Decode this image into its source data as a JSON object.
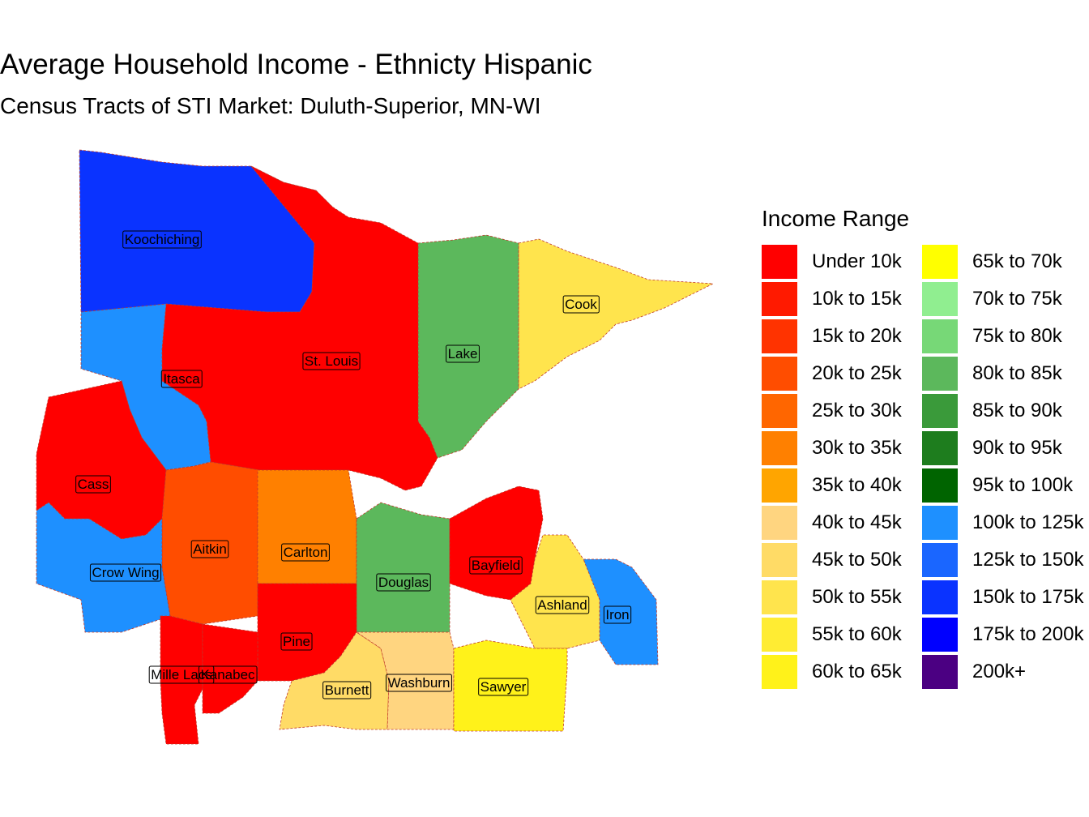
{
  "title": "Average Household Income - Ethnicty Hispanic",
  "subtitle": "Census Tracts of STI Market: Duluth-Superior, MN-WI",
  "legend": {
    "title": "Income Range",
    "items": [
      {
        "label": "Under 10k",
        "color": "#FF0000"
      },
      {
        "label": "10k to 15k",
        "color": "#FF1A00"
      },
      {
        "label": "15k to 20k",
        "color": "#FF3300"
      },
      {
        "label": "20k to 25k",
        "color": "#FF4D00"
      },
      {
        "label": "25k to 30k",
        "color": "#FF6600"
      },
      {
        "label": "30k to 35k",
        "color": "#FF8000"
      },
      {
        "label": "35k to 40k",
        "color": "#FFA500"
      },
      {
        "label": "40k to 45k",
        "color": "#FFD580"
      },
      {
        "label": "45k to 50k",
        "color": "#FFDB66"
      },
      {
        "label": "50k to 55k",
        "color": "#FFE44D"
      },
      {
        "label": "55k to 60k",
        "color": "#FFEC33"
      },
      {
        "label": "60k to 65k",
        "color": "#FFF21A"
      },
      {
        "label": "65k to 70k",
        "color": "#FFFF00"
      },
      {
        "label": "70k to 75k",
        "color": "#90EE90"
      },
      {
        "label": "75k to 80k",
        "color": "#77D877"
      },
      {
        "label": "80k to 85k",
        "color": "#5CB85C"
      },
      {
        "label": "85k to 90k",
        "color": "#3A9A3A"
      },
      {
        "label": "90k to 95k",
        "color": "#1E7D1E"
      },
      {
        "label": "95k to 100k",
        "color": "#006400"
      },
      {
        "label": "100k to 125k",
        "color": "#1E90FF"
      },
      {
        "label": "125k to 150k",
        "color": "#1A66FF"
      },
      {
        "label": "150k to 175k",
        "color": "#0A33FF"
      },
      {
        "label": "175k to 200k",
        "color": "#0000FF"
      },
      {
        "label": "200k+",
        "color": "#4B0082"
      }
    ]
  },
  "counties": [
    {
      "name": "Koochiching",
      "income_range": "150k to 175k"
    },
    {
      "name": "Cook",
      "income_range": "50k to 55k"
    },
    {
      "name": "Lake",
      "income_range": "80k to 85k"
    },
    {
      "name": "St. Louis",
      "income_range": "Under 10k"
    },
    {
      "name": "Itasca",
      "income_range": "100k to 125k"
    },
    {
      "name": "Cass",
      "income_range": "Under 10k"
    },
    {
      "name": "Aitkin",
      "income_range": "20k to 25k"
    },
    {
      "name": "Carlton",
      "income_range": "30k to 35k"
    },
    {
      "name": "Crow Wing",
      "income_range": "100k to 125k"
    },
    {
      "name": "Douglas",
      "income_range": "80k to 85k"
    },
    {
      "name": "Bayfield",
      "income_range": "Under 10k"
    },
    {
      "name": "Ashland",
      "income_range": "50k to 55k"
    },
    {
      "name": "Iron",
      "income_range": "100k to 125k"
    },
    {
      "name": "Pine",
      "income_range": "Under 10k"
    },
    {
      "name": "Mille Lacs",
      "income_range": "Under 10k"
    },
    {
      "name": "Kanabec",
      "income_range": "Under 10k"
    },
    {
      "name": "Burnett",
      "income_range": "45k to 50k"
    },
    {
      "name": "Washburn",
      "income_range": "40k to 45k"
    },
    {
      "name": "Sawyer",
      "income_range": "60k to 65k"
    }
  ]
}
